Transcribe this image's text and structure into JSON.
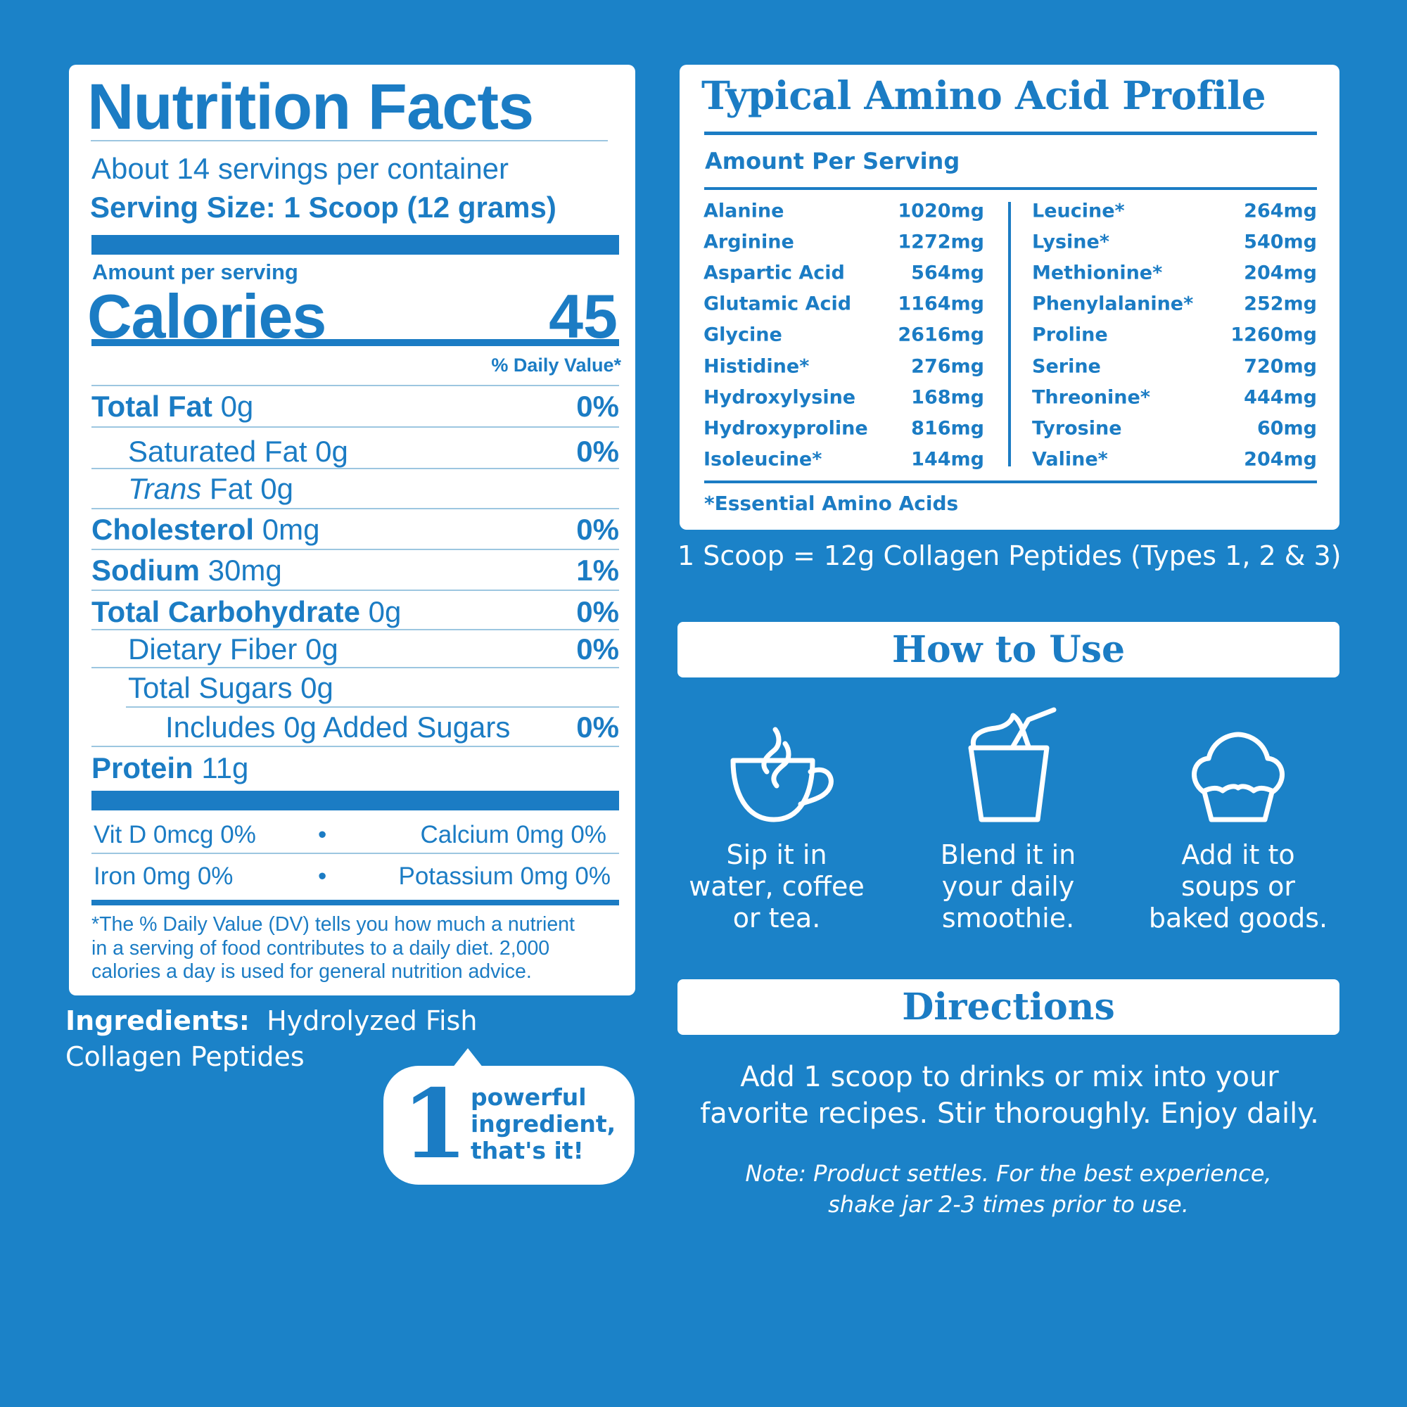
{
  "nutrition": {
    "title": "Nutrition Facts",
    "servings": "About 14 servings per container",
    "serving_size": "Serving Size: 1 Scoop (12 grams)",
    "amount_per_serving": "Amount per serving",
    "calories_label": "Calories",
    "calories_value": "45",
    "daily_value_header": "% Daily Value*",
    "rows": [
      {
        "label": "Total Fat",
        "amount": "0g",
        "pct": "0%"
      },
      {
        "label": "Saturated Fat 0g",
        "pct": "0%"
      },
      {
        "label_italic": "Trans",
        "label": "Fat 0g"
      },
      {
        "label": "Cholesterol",
        "amount": "0mg",
        "pct": "0%"
      },
      {
        "label": "Sodium",
        "amount": "30mg",
        "pct": "1%"
      },
      {
        "label": "Total Carbohydrate",
        "amount": "0g",
        "pct": "0%"
      },
      {
        "label": "Dietary Fiber 0g",
        "pct": "0%"
      },
      {
        "label": "Total Sugars 0g"
      },
      {
        "label": "Includes 0g Added Sugars",
        "pct": "0%"
      },
      {
        "label": "Protein",
        "amount": "11g"
      }
    ],
    "vitamins": [
      {
        "left": "Vit D 0mcg 0%",
        "right": "Calcium 0mg 0%"
      },
      {
        "left": "Iron 0mg 0%",
        "right": "Potassium 0mg 0%"
      }
    ],
    "bullet": "•",
    "footnote": [
      "*The % Daily Value (DV) tells you how much a nutrient",
      "in a serving of food contributes to a daily diet. 2,000",
      "calories a day is used for general nutrition advice."
    ]
  },
  "ingredients": {
    "label": "Ingredients:",
    "text_line1": "Hydrolyzed Fish",
    "text_line2": "Collagen Peptides"
  },
  "badge": {
    "number": "1",
    "lines": [
      "powerful",
      "ingredient,",
      "that's it!"
    ]
  },
  "amino": {
    "title": "Typical Amino Acid Profile",
    "subtitle": "Amount Per Serving",
    "left": [
      [
        "Alanine",
        "1020mg"
      ],
      [
        "Arginine",
        "1272mg"
      ],
      [
        "Aspartic Acid",
        "564mg"
      ],
      [
        "Glutamic Acid",
        "1164mg"
      ],
      [
        "Glycine",
        "2616mg"
      ],
      [
        "Histidine*",
        "276mg"
      ],
      [
        "Hydroxylysine",
        "168mg"
      ],
      [
        "Hydroxyproline",
        "816mg"
      ],
      [
        "Isoleucine*",
        "144mg"
      ]
    ],
    "right": [
      [
        "Leucine*",
        "264mg"
      ],
      [
        "Lysine*",
        "540mg"
      ],
      [
        "Methionine*",
        "204mg"
      ],
      [
        "Phenylalanine*",
        "252mg"
      ],
      [
        "Proline",
        "1260mg"
      ],
      [
        "Serine",
        "720mg"
      ],
      [
        "Threonine*",
        "444mg"
      ],
      [
        "Tyrosine",
        "60mg"
      ],
      [
        "Valine*",
        "204mg"
      ]
    ],
    "footnote": "*Essential Amino Acids"
  },
  "scoop_note": "1 Scoop = 12g Collagen Peptides (Types 1, 2 & 3)",
  "how_to_use": {
    "title": "How to Use",
    "items": [
      {
        "icon": "coffee-cup-icon",
        "lines": [
          "Sip it in",
          "water, coffee",
          "or tea."
        ]
      },
      {
        "icon": "smoothie-icon",
        "lines": [
          "Blend it in",
          "your daily",
          "smoothie."
        ]
      },
      {
        "icon": "muffin-icon",
        "lines": [
          "Add it to",
          "soups or",
          "baked goods."
        ]
      }
    ]
  },
  "directions": {
    "title": "Directions",
    "lines": [
      "Add 1 scoop to drinks or mix into your",
      "favorite recipes. Stir thoroughly. Enjoy daily."
    ],
    "note": [
      "Note: Product settles. For the best experience,",
      "shake jar 2-3 times prior to use."
    ]
  },
  "colors": {
    "background": "#1b82c8",
    "text_blue": "#1b7cc4",
    "card": "#ffffff"
  }
}
